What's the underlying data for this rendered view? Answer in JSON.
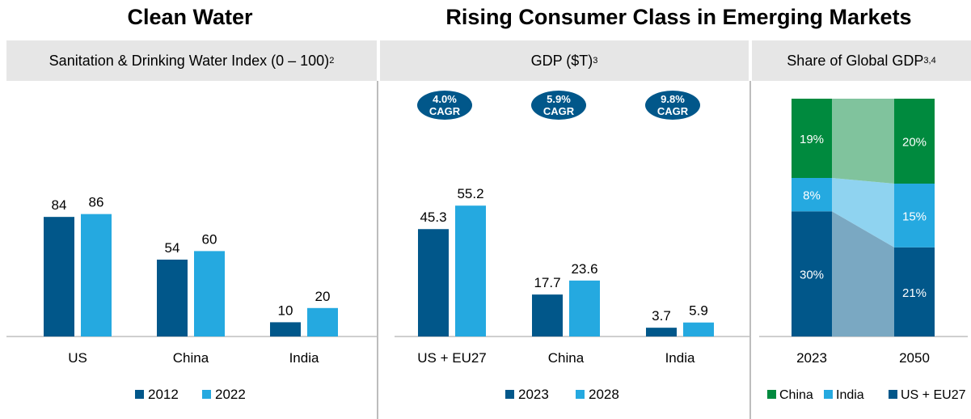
{
  "titles": {
    "left": "Clean Water",
    "right": "Rising Consumer Class in Emerging Markets"
  },
  "headers": {
    "sanitation": "Sanitation & Drinking Water Index (0 – 100)",
    "sanitation_sup": "2",
    "gdp": "GDP ($T)",
    "gdp_sup": "3",
    "share": "Share of Global GDP",
    "share_sup": "3,4"
  },
  "colors": {
    "dark_blue": "#01578a",
    "light_blue": "#25a9e0",
    "green": "#008a3e",
    "green_faded": "#80c39d",
    "light_blue_faded": "#8fd3f0",
    "dark_blue_faded": "#7aa8c2",
    "cagr_badge": "#01578a",
    "header_bg": "#e6e6e6"
  },
  "chart_data": [
    {
      "type": "bar",
      "categories": [
        "US",
        "China",
        "India"
      ],
      "series": [
        {
          "name": "2012",
          "values": [
            84,
            54,
            10
          ]
        },
        {
          "name": "2022",
          "values": [
            86,
            60,
            20
          ]
        }
      ],
      "ylim": [
        0,
        100
      ]
    },
    {
      "type": "bar",
      "categories": [
        "US + EU27",
        "China",
        "India"
      ],
      "series": [
        {
          "name": "2023",
          "values": [
            45.3,
            17.7,
            3.7
          ]
        },
        {
          "name": "2028",
          "values": [
            55.2,
            23.6,
            5.9
          ]
        }
      ],
      "annotations": [
        {
          "line1": "4.0%",
          "line2": "CAGR"
        },
        {
          "line1": "5.9%",
          "line2": "CAGR"
        },
        {
          "line1": "9.8%",
          "line2": "CAGR"
        }
      ],
      "ylim": [
        0,
        65
      ]
    },
    {
      "type": "bar",
      "stacked": true,
      "categories": [
        "2023",
        "2050"
      ],
      "series": [
        {
          "name": "US + EU27",
          "values": [
            30,
            21
          ],
          "labels": [
            "30%",
            "21%"
          ]
        },
        {
          "name": "India",
          "values": [
            8,
            15
          ],
          "labels": [
            "8%",
            "15%"
          ]
        },
        {
          "name": "China",
          "values": [
            19,
            20
          ],
          "labels": [
            "19%",
            "20%"
          ]
        }
      ],
      "legend": [
        "China",
        "India",
        "US + EU27"
      ],
      "legend_position": "bottom"
    }
  ]
}
